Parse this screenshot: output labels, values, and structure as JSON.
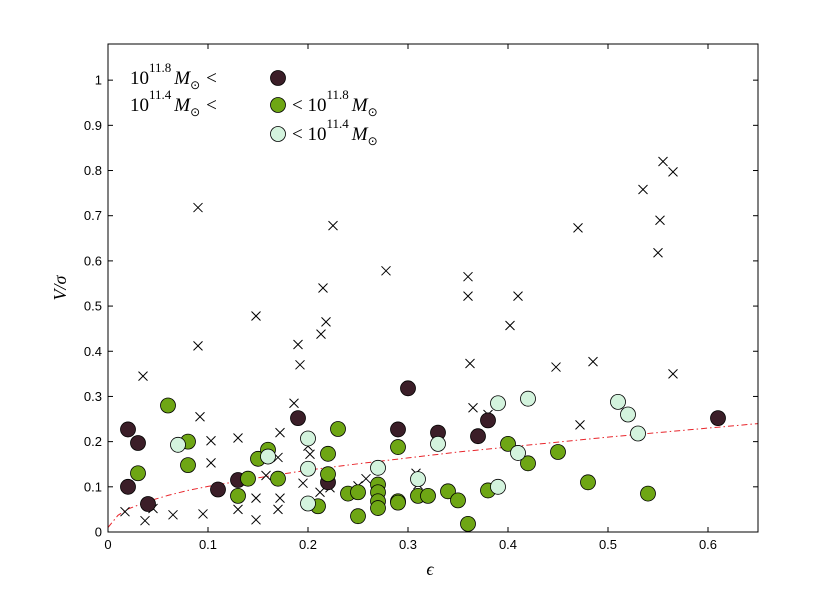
{
  "chart_data": {
    "type": "scatter",
    "xlabel": "ϵ",
    "ylabel": "V/σ",
    "xlim": [
      0,
      0.65
    ],
    "ylim": [
      0,
      1.08
    ],
    "x_ticks": [
      0,
      0.1,
      0.2,
      0.3,
      0.4,
      0.5,
      0.6
    ],
    "x_tick_labels": [
      "0",
      "0.1",
      "0.2",
      "0.3",
      "0.4",
      "0.5",
      "0.6"
    ],
    "y_ticks": [
      0,
      0.1,
      0.2,
      0.3,
      0.4,
      0.5,
      0.6,
      0.7,
      0.8,
      0.9,
      1
    ],
    "y_tick_labels": [
      "0",
      "0.1",
      "0.2",
      "0.3",
      "0.4",
      "0.5",
      "0.6",
      "0.7",
      "0.8",
      "0.9",
      "1"
    ],
    "grid": false,
    "legend_position": "top-left",
    "legend": [
      {
        "prefix_base": "10",
        "prefix_exp": "11.8",
        "prefix_unit": "M",
        "prefix_sub": "⊙",
        "prefix_op": "<",
        "suffix_op": "",
        "suffix_base": "",
        "suffix_exp": "",
        "suffix_unit": "",
        "suffix_sub": "",
        "marker_color": "#3b1e28"
      },
      {
        "prefix_base": "10",
        "prefix_exp": "11.4",
        "prefix_unit": "M",
        "prefix_sub": "⊙",
        "prefix_op": "<",
        "suffix_op": "<",
        "suffix_base": "10",
        "suffix_exp": "11.8",
        "suffix_unit": "M",
        "suffix_sub": "⊙",
        "marker_color": "#6ea614"
      },
      {
        "prefix_base": "",
        "prefix_exp": "",
        "prefix_unit": "",
        "prefix_sub": "",
        "prefix_op": "",
        "suffix_op": "<",
        "suffix_base": "10",
        "suffix_exp": "11.4",
        "suffix_unit": "M",
        "suffix_sub": "⊙",
        "marker_color": "#d3f3dd"
      }
    ],
    "series": [
      {
        "marker": "circle",
        "color": "#3b1e28",
        "points": [
          [
            0.02,
            0.227
          ],
          [
            0.02,
            0.1
          ],
          [
            0.03,
            0.197
          ],
          [
            0.04,
            0.062
          ],
          [
            0.11,
            0.094
          ],
          [
            0.13,
            0.115
          ],
          [
            0.19,
            0.252
          ],
          [
            0.22,
            0.11
          ],
          [
            0.29,
            0.227
          ],
          [
            0.3,
            0.318
          ],
          [
            0.33,
            0.22
          ],
          [
            0.37,
            0.212
          ],
          [
            0.38,
            0.247
          ],
          [
            0.61,
            0.252
          ]
        ]
      },
      {
        "marker": "circle",
        "color": "#6ea614",
        "points": [
          [
            0.03,
            0.13
          ],
          [
            0.06,
            0.28
          ],
          [
            0.08,
            0.2
          ],
          [
            0.08,
            0.148
          ],
          [
            0.13,
            0.08
          ],
          [
            0.14,
            0.118
          ],
          [
            0.15,
            0.162
          ],
          [
            0.16,
            0.182
          ],
          [
            0.17,
            0.118
          ],
          [
            0.21,
            0.057
          ],
          [
            0.22,
            0.173
          ],
          [
            0.22,
            0.128
          ],
          [
            0.23,
            0.228
          ],
          [
            0.24,
            0.085
          ],
          [
            0.25,
            0.088
          ],
          [
            0.25,
            0.035
          ],
          [
            0.27,
            0.105
          ],
          [
            0.27,
            0.088
          ],
          [
            0.27,
            0.068
          ],
          [
            0.27,
            0.053
          ],
          [
            0.29,
            0.188
          ],
          [
            0.29,
            0.068
          ],
          [
            0.29,
            0.065
          ],
          [
            0.31,
            0.08
          ],
          [
            0.32,
            0.08
          ],
          [
            0.34,
            0.09
          ],
          [
            0.35,
            0.07
          ],
          [
            0.36,
            0.018
          ],
          [
            0.38,
            0.092
          ],
          [
            0.4,
            0.195
          ],
          [
            0.42,
            0.152
          ],
          [
            0.45,
            0.177
          ],
          [
            0.48,
            0.11
          ],
          [
            0.54,
            0.085
          ]
        ]
      },
      {
        "marker": "circle",
        "color": "#d3f3dd",
        "points": [
          [
            0.07,
            0.193
          ],
          [
            0.16,
            0.167
          ],
          [
            0.2,
            0.207
          ],
          [
            0.2,
            0.14
          ],
          [
            0.2,
            0.063
          ],
          [
            0.27,
            0.142
          ],
          [
            0.31,
            0.117
          ],
          [
            0.33,
            0.195
          ],
          [
            0.39,
            0.285
          ],
          [
            0.39,
            0.1
          ],
          [
            0.41,
            0.175
          ],
          [
            0.42,
            0.295
          ],
          [
            0.51,
            0.288
          ],
          [
            0.52,
            0.26
          ],
          [
            0.53,
            0.218
          ]
        ]
      },
      {
        "marker": "x",
        "color": "#000000",
        "points": [
          [
            0.017,
            0.045
          ],
          [
            0.035,
            0.345
          ],
          [
            0.037,
            0.025
          ],
          [
            0.045,
            0.052
          ],
          [
            0.065,
            0.038
          ],
          [
            0.09,
            0.718
          ],
          [
            0.09,
            0.412
          ],
          [
            0.092,
            0.255
          ],
          [
            0.095,
            0.04
          ],
          [
            0.103,
            0.202
          ],
          [
            0.103,
            0.153
          ],
          [
            0.13,
            0.208
          ],
          [
            0.13,
            0.05
          ],
          [
            0.148,
            0.478
          ],
          [
            0.148,
            0.075
          ],
          [
            0.148,
            0.027
          ],
          [
            0.158,
            0.125
          ],
          [
            0.17,
            0.165
          ],
          [
            0.172,
            0.22
          ],
          [
            0.172,
            0.075
          ],
          [
            0.17,
            0.05
          ],
          [
            0.186,
            0.285
          ],
          [
            0.19,
            0.415
          ],
          [
            0.192,
            0.37
          ],
          [
            0.195,
            0.108
          ],
          [
            0.2,
            0.19
          ],
          [
            0.202,
            0.172
          ],
          [
            0.213,
            0.438
          ],
          [
            0.215,
            0.54
          ],
          [
            0.218,
            0.465
          ],
          [
            0.212,
            0.088
          ],
          [
            0.222,
            0.098
          ],
          [
            0.225,
            0.678
          ],
          [
            0.25,
            0.102
          ],
          [
            0.258,
            0.118
          ],
          [
            0.278,
            0.578
          ],
          [
            0.29,
            0.07
          ],
          [
            0.308,
            0.13
          ],
          [
            0.31,
            0.105
          ],
          [
            0.36,
            0.565
          ],
          [
            0.36,
            0.522
          ],
          [
            0.362,
            0.373
          ],
          [
            0.365,
            0.275
          ],
          [
            0.38,
            0.26
          ],
          [
            0.402,
            0.457
          ],
          [
            0.41,
            0.522
          ],
          [
            0.448,
            0.365
          ],
          [
            0.47,
            0.673
          ],
          [
            0.472,
            0.237
          ],
          [
            0.485,
            0.377
          ],
          [
            0.535,
            0.758
          ],
          [
            0.55,
            0.618
          ],
          [
            0.552,
            0.69
          ],
          [
            0.555,
            0.82
          ],
          [
            0.565,
            0.797
          ],
          [
            0.565,
            0.35
          ]
        ]
      }
    ],
    "trend_line": {
      "style": "dash-dot",
      "color": "#e8252b",
      "points": [
        [
          0,
          0.01
        ],
        [
          0.01,
          0.037
        ],
        [
          0.02,
          0.051
        ],
        [
          0.04,
          0.068
        ],
        [
          0.06,
          0.081
        ],
        [
          0.08,
          0.092
        ],
        [
          0.1,
          0.101
        ],
        [
          0.15,
          0.12
        ],
        [
          0.2,
          0.137
        ],
        [
          0.25,
          0.151
        ],
        [
          0.3,
          0.164
        ],
        [
          0.35,
          0.177
        ],
        [
          0.4,
          0.188
        ],
        [
          0.45,
          0.199
        ],
        [
          0.5,
          0.21
        ],
        [
          0.55,
          0.22
        ],
        [
          0.6,
          0.23
        ],
        [
          0.65,
          0.24
        ]
      ]
    }
  }
}
